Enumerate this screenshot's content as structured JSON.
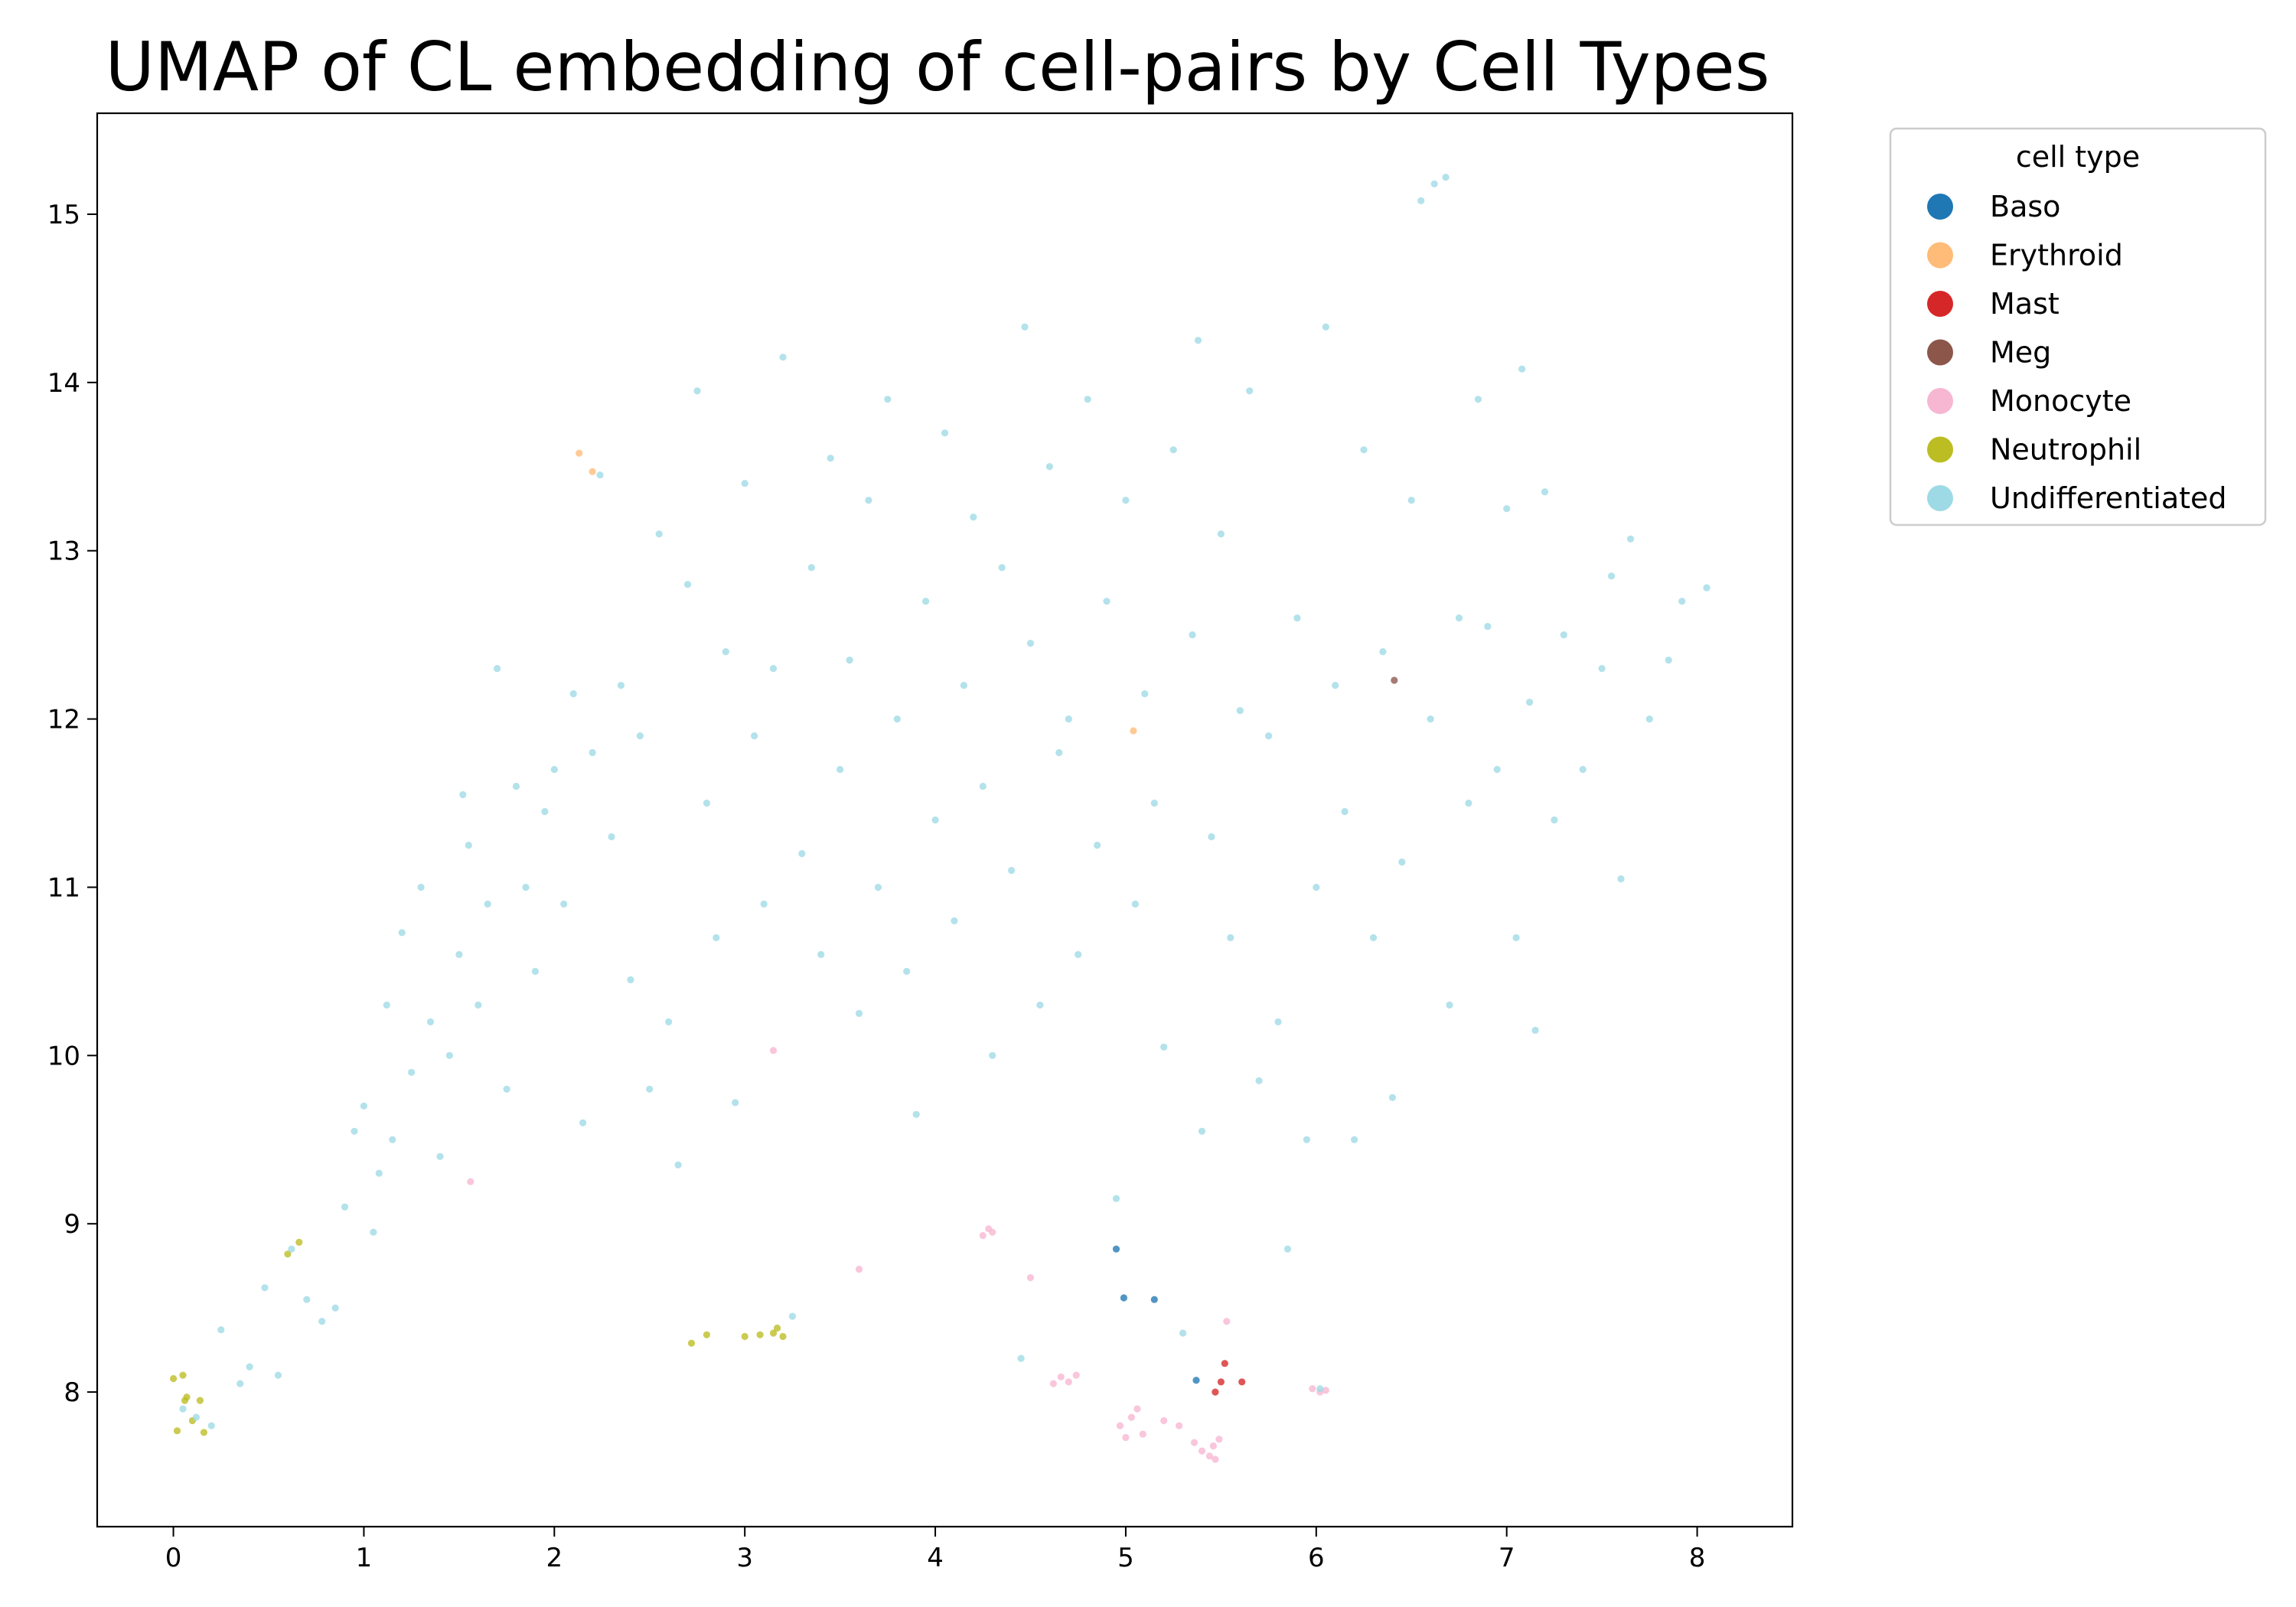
{
  "chart_data": {
    "type": "scatter",
    "title": "UMAP of CL embedding of cell-pairs  by Cell Types",
    "xlabel": "",
    "ylabel": "",
    "xlim": [
      -0.4,
      8.5
    ],
    "ylim": [
      7.2,
      15.6
    ],
    "xticks": [
      "0",
      "1",
      "2",
      "3",
      "4",
      "5",
      "6",
      "7",
      "8"
    ],
    "yticks": [
      "8",
      "9",
      "10",
      "11",
      "12",
      "13",
      "14",
      "15"
    ],
    "grid": false,
    "legend": {
      "title": "cell type",
      "placement": "outside-top-right"
    },
    "series": [
      {
        "name": "Baso",
        "color": "#1f77b4",
        "points": [
          [
            4.95,
            8.85
          ],
          [
            4.99,
            8.56
          ],
          [
            5.15,
            8.55
          ],
          [
            5.37,
            8.07
          ]
        ]
      },
      {
        "name": "Erythroid",
        "color": "#ffbb78",
        "points": [
          [
            2.13,
            13.58
          ],
          [
            2.2,
            13.47
          ],
          [
            5.04,
            11.93
          ]
        ]
      },
      {
        "name": "Mast",
        "color": "#d62728",
        "points": [
          [
            5.47,
            8.0
          ],
          [
            5.5,
            8.06
          ],
          [
            5.52,
            8.17
          ],
          [
            5.61,
            8.06
          ]
        ]
      },
      {
        "name": "Meg",
        "color": "#8c564b",
        "points": [
          [
            6.41,
            12.23
          ]
        ]
      },
      {
        "name": "Monocyte",
        "color": "#f7b6d2",
        "points": [
          [
            1.56,
            9.25
          ],
          [
            3.15,
            10.03
          ],
          [
            3.6,
            8.73
          ],
          [
            4.25,
            8.93
          ],
          [
            4.28,
            8.97
          ],
          [
            4.3,
            8.95
          ],
          [
            4.5,
            8.68
          ],
          [
            4.62,
            8.05
          ],
          [
            4.66,
            8.09
          ],
          [
            4.7,
            8.06
          ],
          [
            4.74,
            8.1
          ],
          [
            4.97,
            7.8
          ],
          [
            5.0,
            7.73
          ],
          [
            5.03,
            7.85
          ],
          [
            5.06,
            7.9
          ],
          [
            5.09,
            7.75
          ],
          [
            5.2,
            7.83
          ],
          [
            5.28,
            7.8
          ],
          [
            5.36,
            7.7
          ],
          [
            5.4,
            7.65
          ],
          [
            5.44,
            7.62
          ],
          [
            5.46,
            7.68
          ],
          [
            5.47,
            7.6
          ],
          [
            5.49,
            7.72
          ],
          [
            5.53,
            8.42
          ],
          [
            5.98,
            8.02
          ],
          [
            6.02,
            8.0
          ],
          [
            6.05,
            8.01
          ]
        ]
      },
      {
        "name": "Neutrophil",
        "color": "#bcbd22",
        "points": [
          [
            0.0,
            8.08
          ],
          [
            0.02,
            7.77
          ],
          [
            0.05,
            8.1
          ],
          [
            0.06,
            7.95
          ],
          [
            0.07,
            7.97
          ],
          [
            0.1,
            7.83
          ],
          [
            0.14,
            7.95
          ],
          [
            0.16,
            7.76
          ],
          [
            0.6,
            8.82
          ],
          [
            0.66,
            8.89
          ],
          [
            2.72,
            8.29
          ],
          [
            2.8,
            8.34
          ],
          [
            3.0,
            8.33
          ],
          [
            3.08,
            8.34
          ],
          [
            3.15,
            8.35
          ],
          [
            3.17,
            8.38
          ],
          [
            3.2,
            8.33
          ]
        ]
      },
      {
        "name": "Undifferentiated",
        "color": "#9edae5",
        "points": [
          [
            0.05,
            7.9
          ],
          [
            0.12,
            7.85
          ],
          [
            0.2,
            7.8
          ],
          [
            0.25,
            8.37
          ],
          [
            0.35,
            8.05
          ],
          [
            0.4,
            8.15
          ],
          [
            0.48,
            8.62
          ],
          [
            0.55,
            8.1
          ],
          [
            0.62,
            8.85
          ],
          [
            0.7,
            8.55
          ],
          [
            0.78,
            8.42
          ],
          [
            0.85,
            8.5
          ],
          [
            0.9,
            9.1
          ],
          [
            0.95,
            9.55
          ],
          [
            1.0,
            9.7
          ],
          [
            1.05,
            8.95
          ],
          [
            1.08,
            9.3
          ],
          [
            1.12,
            10.3
          ],
          [
            1.15,
            9.5
          ],
          [
            1.2,
            10.73
          ],
          [
            1.25,
            9.9
          ],
          [
            1.3,
            11.0
          ],
          [
            1.35,
            10.2
          ],
          [
            1.4,
            9.4
          ],
          [
            1.45,
            10.0
          ],
          [
            1.5,
            10.6
          ],
          [
            1.52,
            11.55
          ],
          [
            1.55,
            11.25
          ],
          [
            1.6,
            10.3
          ],
          [
            1.65,
            10.9
          ],
          [
            1.7,
            12.3
          ],
          [
            1.75,
            9.8
          ],
          [
            1.8,
            11.6
          ],
          [
            1.85,
            11.0
          ],
          [
            1.9,
            10.5
          ],
          [
            1.95,
            11.45
          ],
          [
            2.0,
            11.7
          ],
          [
            2.05,
            10.9
          ],
          [
            2.1,
            12.15
          ],
          [
            2.15,
            9.6
          ],
          [
            2.2,
            11.8
          ],
          [
            2.24,
            13.45
          ],
          [
            2.3,
            11.3
          ],
          [
            2.35,
            12.2
          ],
          [
            2.4,
            10.45
          ],
          [
            2.45,
            11.9
          ],
          [
            2.5,
            9.8
          ],
          [
            2.55,
            13.1
          ],
          [
            2.6,
            10.2
          ],
          [
            2.65,
            9.35
          ],
          [
            2.7,
            12.8
          ],
          [
            2.75,
            13.95
          ],
          [
            2.8,
            11.5
          ],
          [
            2.85,
            10.7
          ],
          [
            2.9,
            12.4
          ],
          [
            2.95,
            9.72
          ],
          [
            3.0,
            13.4
          ],
          [
            3.05,
            11.9
          ],
          [
            3.1,
            10.9
          ],
          [
            3.15,
            12.3
          ],
          [
            3.2,
            14.15
          ],
          [
            3.25,
            8.45
          ],
          [
            3.3,
            11.2
          ],
          [
            3.35,
            12.9
          ],
          [
            3.4,
            10.6
          ],
          [
            3.45,
            13.55
          ],
          [
            3.5,
            11.7
          ],
          [
            3.55,
            12.35
          ],
          [
            3.6,
            10.25
          ],
          [
            3.65,
            13.3
          ],
          [
            3.7,
            11.0
          ],
          [
            3.75,
            13.9
          ],
          [
            3.8,
            12.0
          ],
          [
            3.85,
            10.5
          ],
          [
            3.9,
            9.65
          ],
          [
            3.95,
            12.7
          ],
          [
            4.0,
            11.4
          ],
          [
            4.05,
            13.7
          ],
          [
            4.1,
            10.8
          ],
          [
            4.15,
            12.2
          ],
          [
            4.2,
            13.2
          ],
          [
            4.25,
            11.6
          ],
          [
            4.3,
            10.0
          ],
          [
            4.35,
            12.9
          ],
          [
            4.4,
            11.1
          ],
          [
            4.45,
            8.2
          ],
          [
            4.47,
            14.33
          ],
          [
            4.5,
            12.45
          ],
          [
            4.55,
            10.3
          ],
          [
            4.6,
            13.5
          ],
          [
            4.65,
            11.8
          ],
          [
            4.7,
            12.0
          ],
          [
            4.75,
            10.6
          ],
          [
            4.8,
            13.9
          ],
          [
            4.85,
            11.25
          ],
          [
            4.9,
            12.7
          ],
          [
            4.95,
            9.15
          ],
          [
            5.0,
            13.3
          ],
          [
            5.05,
            10.9
          ],
          [
            5.1,
            12.15
          ],
          [
            5.15,
            11.5
          ],
          [
            5.2,
            10.05
          ],
          [
            5.25,
            13.6
          ],
          [
            5.3,
            8.35
          ],
          [
            5.35,
            12.5
          ],
          [
            5.38,
            14.25
          ],
          [
            5.4,
            9.55
          ],
          [
            5.45,
            11.3
          ],
          [
            5.5,
            13.1
          ],
          [
            5.55,
            10.7
          ],
          [
            5.6,
            12.05
          ],
          [
            5.65,
            13.95
          ],
          [
            5.7,
            9.85
          ],
          [
            5.75,
            11.9
          ],
          [
            5.8,
            10.2
          ],
          [
            5.85,
            8.85
          ],
          [
            5.9,
            12.6
          ],
          [
            5.95,
            9.5
          ],
          [
            6.0,
            11.0
          ],
          [
            6.02,
            8.02
          ],
          [
            6.05,
            14.33
          ],
          [
            6.1,
            12.2
          ],
          [
            6.15,
            11.45
          ],
          [
            6.2,
            9.5
          ],
          [
            6.25,
            13.6
          ],
          [
            6.3,
            10.7
          ],
          [
            6.35,
            12.4
          ],
          [
            6.4,
            9.75
          ],
          [
            6.45,
            11.15
          ],
          [
            6.5,
            13.3
          ],
          [
            6.55,
            15.08
          ],
          [
            6.6,
            12.0
          ],
          [
            6.62,
            15.18
          ],
          [
            6.68,
            15.22
          ],
          [
            6.7,
            10.3
          ],
          [
            6.75,
            12.6
          ],
          [
            6.8,
            11.5
          ],
          [
            6.85,
            13.9
          ],
          [
            6.9,
            12.55
          ],
          [
            6.95,
            11.7
          ],
          [
            7.0,
            13.25
          ],
          [
            7.05,
            10.7
          ],
          [
            7.08,
            14.08
          ],
          [
            7.12,
            12.1
          ],
          [
            7.15,
            10.15
          ],
          [
            7.2,
            13.35
          ],
          [
            7.25,
            11.4
          ],
          [
            7.3,
            12.5
          ],
          [
            7.4,
            11.7
          ],
          [
            7.5,
            12.3
          ],
          [
            7.55,
            12.85
          ],
          [
            7.6,
            11.05
          ],
          [
            7.65,
            13.07
          ],
          [
            7.75,
            12.0
          ],
          [
            7.85,
            12.35
          ],
          [
            7.92,
            12.7
          ],
          [
            8.05,
            12.78
          ]
        ]
      }
    ]
  }
}
